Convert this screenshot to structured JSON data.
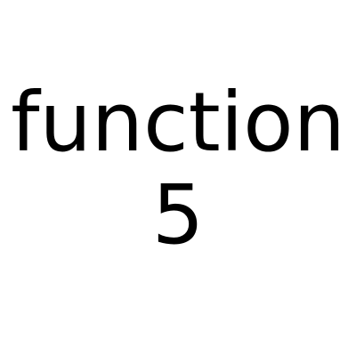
{
  "text": {
    "line1": "function",
    "line2": "5"
  },
  "colors": {
    "background": "#ffffff",
    "text": "#000000"
  }
}
